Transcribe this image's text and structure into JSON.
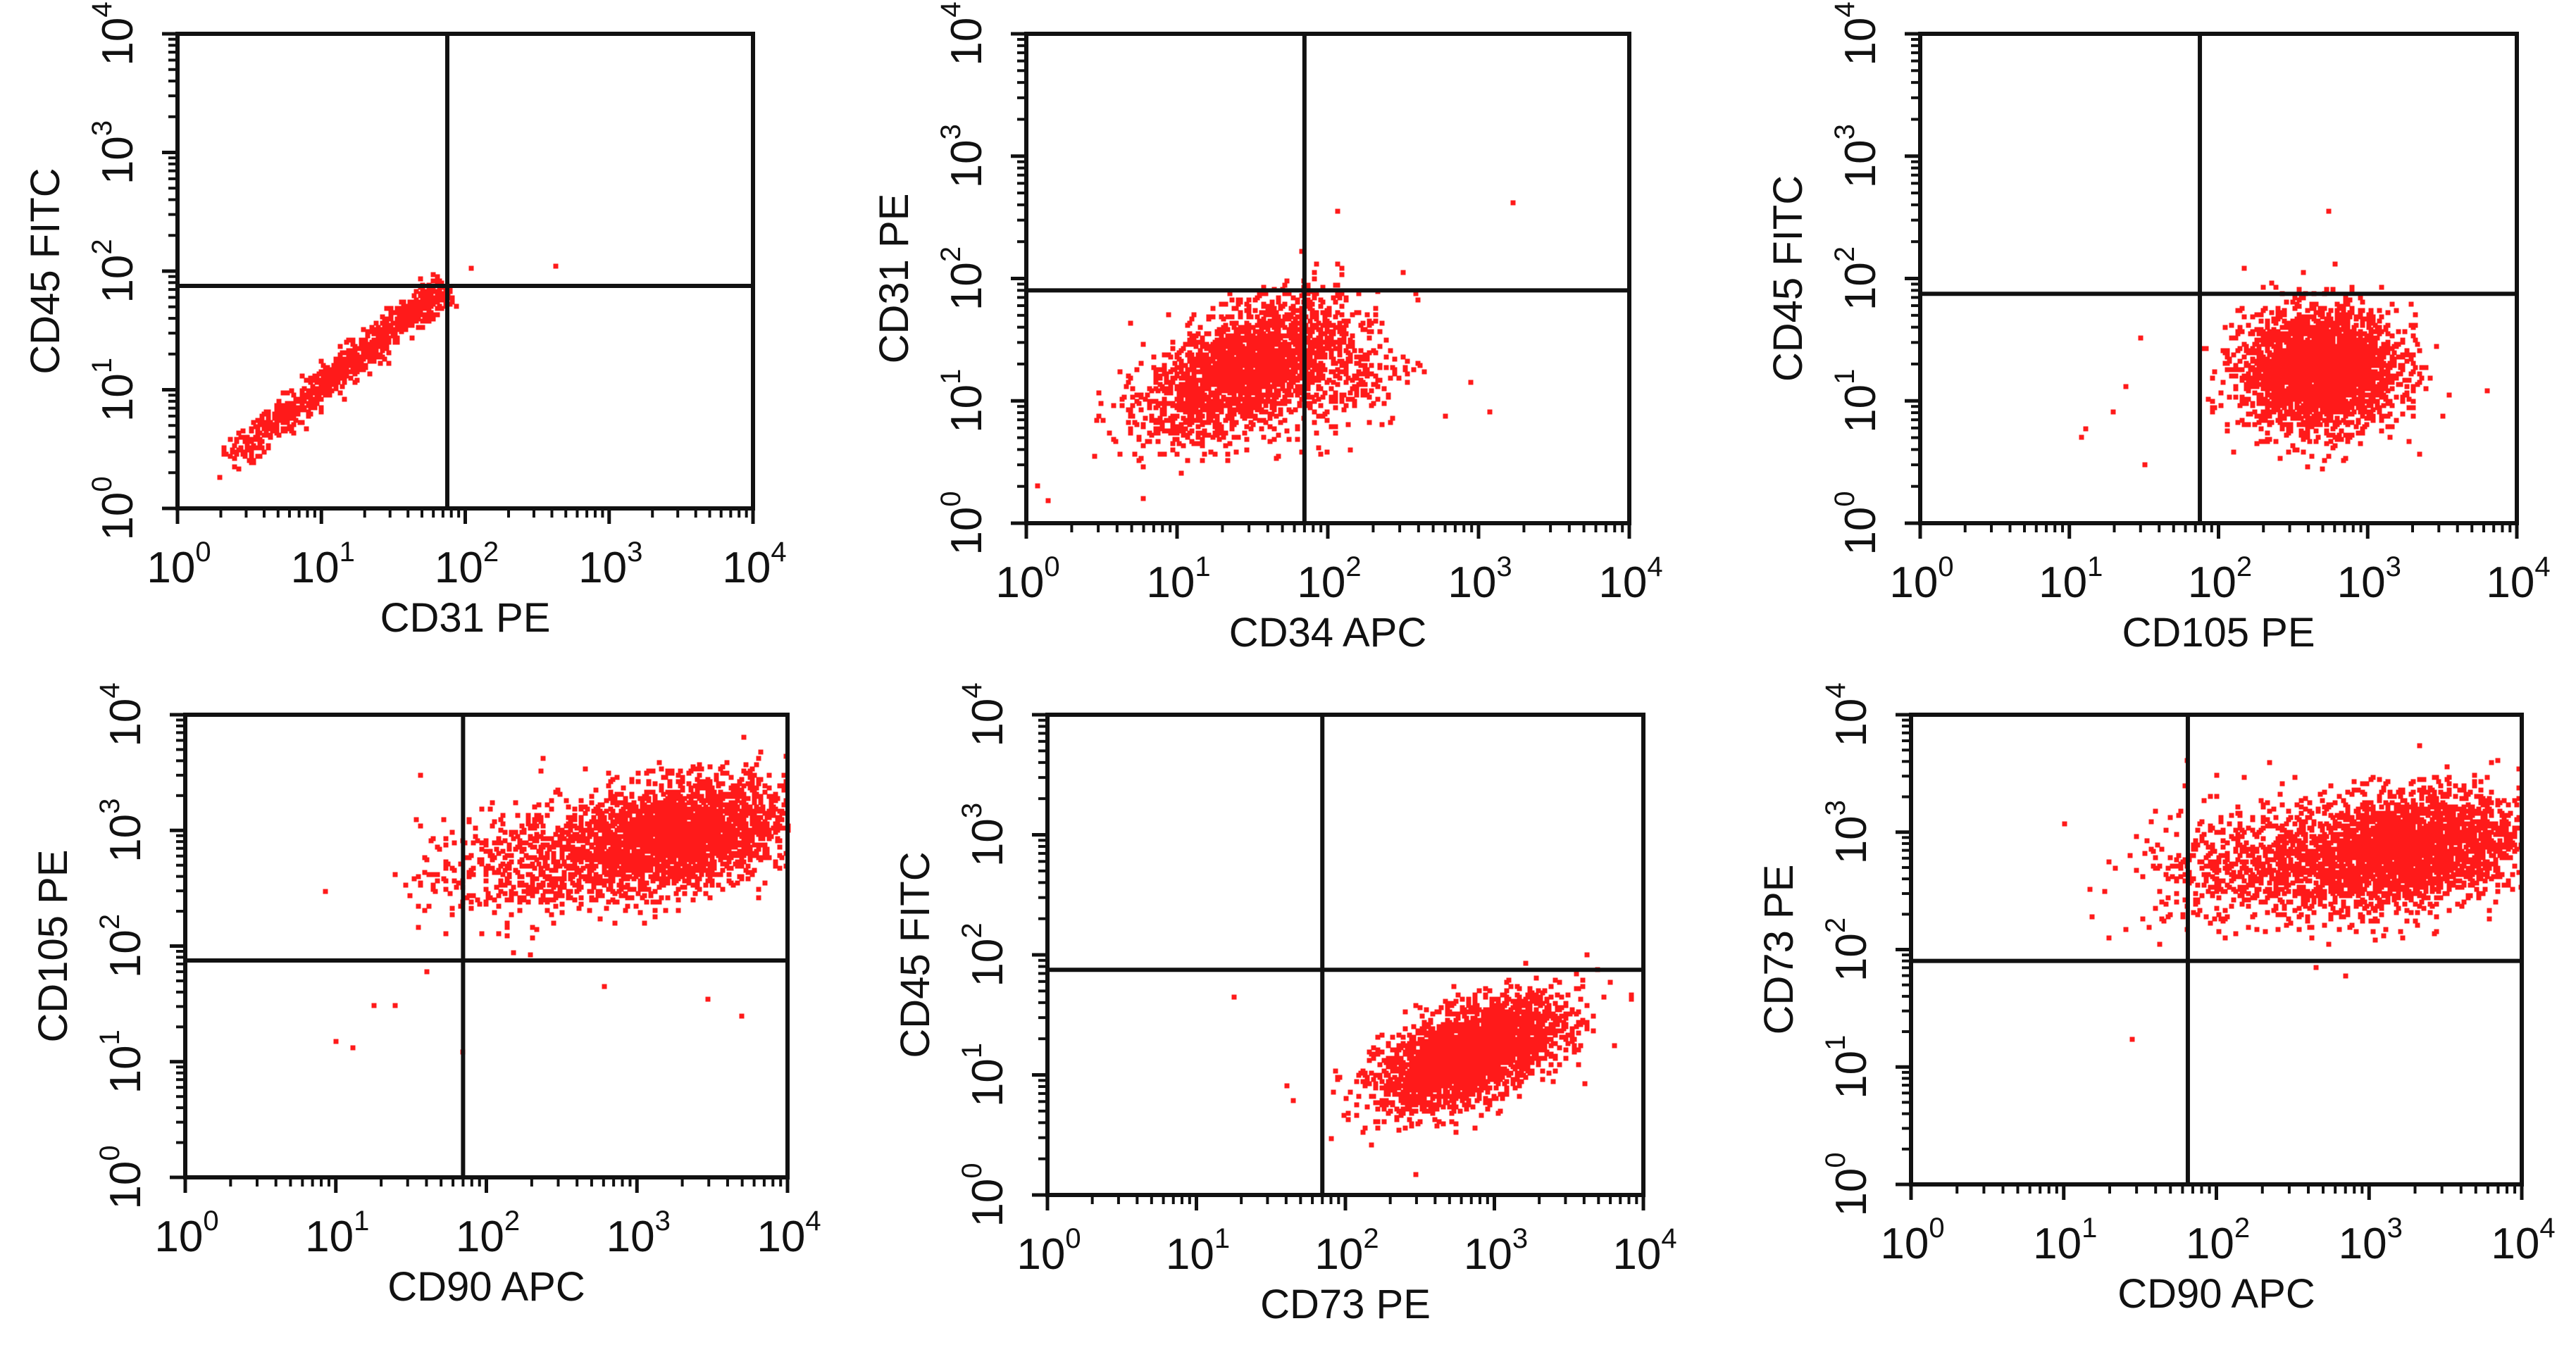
{
  "colors": {
    "points": "#ff1a1a",
    "axis": "#111111",
    "background": "#ffffff"
  },
  "chart_data": [
    {
      "type": "scatter",
      "title": "",
      "xlabel": "CD31 PE",
      "ylabel": "CD45 FITC",
      "xscale": "log",
      "yscale": "log",
      "xlim": [
        1,
        10000
      ],
      "ylim": [
        1,
        10000
      ],
      "gate": {
        "x": 75,
        "y": 75
      },
      "tick_labels": [
        "10^0",
        "10^1",
        "10^2",
        "10^3",
        "10^4"
      ],
      "clusters": [
        {
          "shape": "diagonal",
          "from": [
            2.3,
            2.5
          ],
          "to": [
            75,
            75
          ],
          "count": 900,
          "spread": 0.06
        }
      ],
      "outliers": [
        [
          110,
          105
        ],
        [
          420,
          110
        ],
        [
          60,
          55
        ],
        [
          2.0,
          1.8
        ]
      ]
    },
    {
      "type": "scatter",
      "title": "",
      "xlabel": "CD34 APC",
      "ylabel": "CD31 PE",
      "xscale": "log",
      "yscale": "log",
      "xlim": [
        1,
        10000
      ],
      "ylim": [
        1,
        10000
      ],
      "gate": {
        "x": 70,
        "y": 80
      },
      "tick_labels": [
        "10^0",
        "10^1",
        "10^2",
        "10^3",
        "10^4"
      ],
      "clusters": [
        {
          "shape": "ellipse",
          "center": [
            28,
            18
          ],
          "sd": [
            0.32,
            0.28
          ],
          "rho": 0.55,
          "count": 2200
        },
        {
          "shape": "ellipse",
          "center": [
            120,
            15
          ],
          "sd": [
            0.25,
            0.25
          ],
          "rho": 0.3,
          "count": 260
        }
      ],
      "outliers": [
        [
          1700,
          420
        ],
        [
          1200,
          8
        ],
        [
          900,
          14
        ],
        [
          1.2,
          2
        ],
        [
          1.4,
          1.5
        ],
        [
          6,
          1.6
        ]
      ]
    },
    {
      "type": "scatter",
      "title": "",
      "xlabel": "CD105 PE",
      "ylabel": "CD45 FITC",
      "xscale": "log",
      "yscale": "log",
      "xlim": [
        1,
        10000
      ],
      "ylim": [
        1,
        10000
      ],
      "gate": {
        "x": 75,
        "y": 75
      },
      "tick_labels": [
        "10^0",
        "10^1",
        "10^2",
        "10^3",
        "10^4"
      ],
      "clusters": [
        {
          "shape": "ellipse",
          "center": [
            480,
            18
          ],
          "sd": [
            0.26,
            0.24
          ],
          "rho": 0.05,
          "count": 2800
        }
      ],
      "outliers": [
        [
          550,
          360
        ],
        [
          30,
          33
        ],
        [
          24,
          13
        ],
        [
          20,
          8
        ],
        [
          12,
          5
        ],
        [
          13,
          6
        ],
        [
          32,
          3
        ]
      ]
    },
    {
      "type": "scatter",
      "title": "",
      "xlabel": "CD90 APC",
      "ylabel": "CD105 PE",
      "xscale": "log",
      "yscale": "log",
      "xlim": [
        1,
        10000
      ],
      "ylim": [
        1,
        10000
      ],
      "gate": {
        "x": 70,
        "y": 75
      },
      "tick_labels": [
        "10^0",
        "10^1",
        "10^2",
        "10^3",
        "10^4"
      ],
      "clusters": [
        {
          "shape": "ellipse",
          "center": [
            1800,
            900
          ],
          "sd": [
            0.38,
            0.24
          ],
          "rho": 0.3,
          "count": 2600
        },
        {
          "shape": "ellipse",
          "center": [
            180,
            500
          ],
          "sd": [
            0.35,
            0.26
          ],
          "rho": 0.25,
          "count": 450
        }
      ],
      "outliers": [
        [
          10,
          15
        ],
        [
          13,
          13
        ],
        [
          18,
          30
        ],
        [
          25,
          30
        ],
        [
          40,
          60
        ],
        [
          70,
          12
        ],
        [
          8.5,
          300
        ],
        [
          3000,
          35
        ],
        [
          5000,
          25
        ],
        [
          600,
          45
        ]
      ]
    },
    {
      "type": "scatter",
      "title": "",
      "xlabel": "CD73 PE",
      "ylabel": "CD45 FITC",
      "xscale": "log",
      "yscale": "log",
      "xlim": [
        1,
        10000
      ],
      "ylim": [
        1,
        10000
      ],
      "gate": {
        "x": 70,
        "y": 75
      },
      "tick_labels": [
        "10^0",
        "10^1",
        "10^2",
        "10^3",
        "10^4"
      ],
      "clusters": [
        {
          "shape": "ellipse",
          "center": [
            700,
            15
          ],
          "sd": [
            0.3,
            0.22
          ],
          "rho": 0.55,
          "count": 2800
        }
      ],
      "outliers": [
        [
          18,
          45
        ],
        [
          40,
          8
        ],
        [
          45,
          6
        ],
        [
          80,
          3
        ],
        [
          5000,
          75
        ],
        [
          4200,
          100
        ],
        [
          6000,
          60
        ],
        [
          300,
          1.5
        ]
      ]
    },
    {
      "type": "scatter",
      "title": "",
      "xlabel": "CD90 APC",
      "ylabel": "CD73 PE",
      "xscale": "log",
      "yscale": "log",
      "xlim": [
        1,
        10000
      ],
      "ylim": [
        1,
        10000
      ],
      "gate": {
        "x": 65,
        "y": 80
      },
      "tick_labels": [
        "10^0",
        "10^1",
        "10^2",
        "10^3",
        "10^4"
      ],
      "clusters": [
        {
          "shape": "ellipse",
          "center": [
            1500,
            700
          ],
          "sd": [
            0.42,
            0.25
          ],
          "rho": 0.25,
          "count": 2800
        },
        {
          "shape": "ellipse",
          "center": [
            140,
            500
          ],
          "sd": [
            0.35,
            0.25
          ],
          "rho": 0.2,
          "count": 420
        }
      ],
      "outliers": [
        [
          10,
          1200
        ],
        [
          28,
          17
        ],
        [
          65,
          4000
        ],
        [
          62,
          2500
        ],
        [
          30,
          900
        ],
        [
          40,
          1500
        ],
        [
          700,
          60
        ],
        [
          450,
          70
        ]
      ]
    }
  ]
}
